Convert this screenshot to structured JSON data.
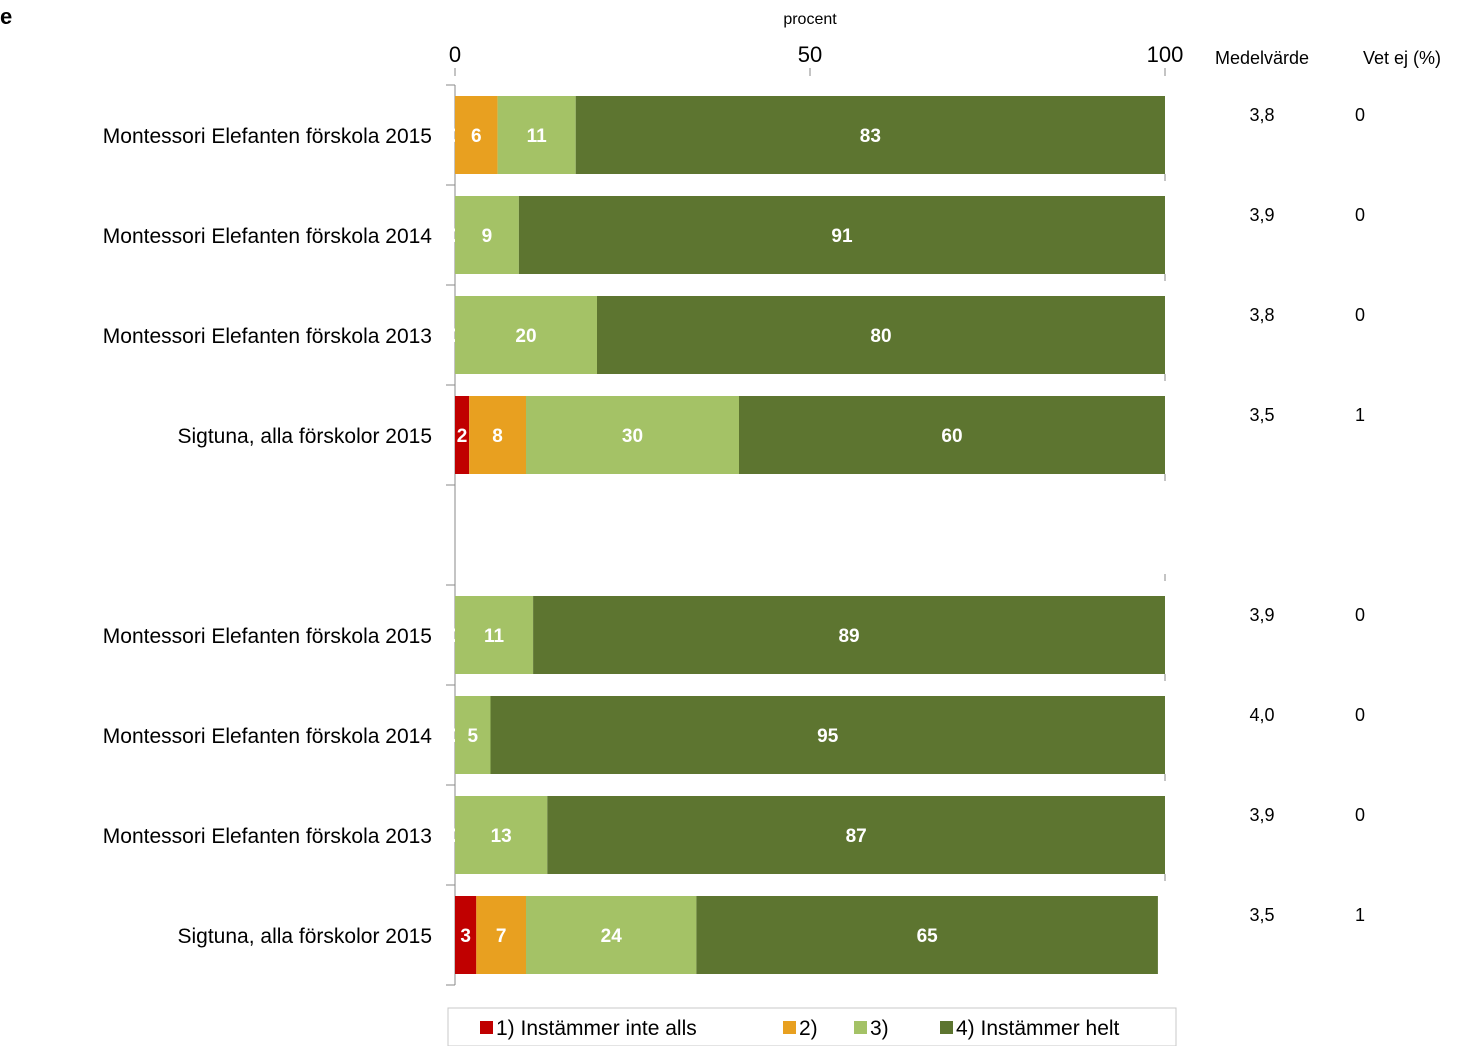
{
  "chart_data": {
    "type": "bar",
    "orientation": "horizontal",
    "stacked": true,
    "title": "e",
    "xlabel": "procent",
    "xlim": [
      0,
      100
    ],
    "xticks": [
      "0",
      "50",
      "100"
    ],
    "categories": [
      "Montessori Elefanten förskola 2015",
      "Montessori Elefanten förskola 2014",
      "Montessori Elefanten förskola 2013",
      "Sigtuna, alla förskolor 2015",
      "",
      "Montessori Elefanten förskola 2015",
      "Montessori Elefanten förskola 2014",
      "Montessori Elefanten förskola 2013",
      "Sigtuna, alla förskolor 2015"
    ],
    "series": [
      {
        "name": "1) Instämmer inte alls",
        "color": "#c00000",
        "values": [
          0,
          0,
          0,
          2,
          null,
          0,
          0,
          0,
          3
        ]
      },
      {
        "name": "2)",
        "color": "#e8a020",
        "values": [
          6,
          0,
          0,
          8,
          null,
          0,
          0,
          0,
          7
        ]
      },
      {
        "name": "3)",
        "color": "#a4c266",
        "values": [
          11,
          9,
          20,
          30,
          null,
          11,
          5,
          13,
          24
        ]
      },
      {
        "name": "4) Instämmer helt",
        "color": "#5d7530",
        "values": [
          83,
          91,
          80,
          60,
          null,
          89,
          95,
          87,
          65
        ]
      }
    ],
    "columns": [
      {
        "header": "Medelvärde",
        "values": [
          "3,8",
          "3,9",
          "3,8",
          "3,5",
          "",
          "3,9",
          "4,0",
          "3,9",
          "3,5"
        ]
      },
      {
        "header": "Vet ej (%)",
        "values": [
          "0",
          "0",
          "0",
          "1",
          "",
          "0",
          "0",
          "0",
          "1"
        ]
      }
    ],
    "grid": false,
    "legend": "bottom"
  }
}
